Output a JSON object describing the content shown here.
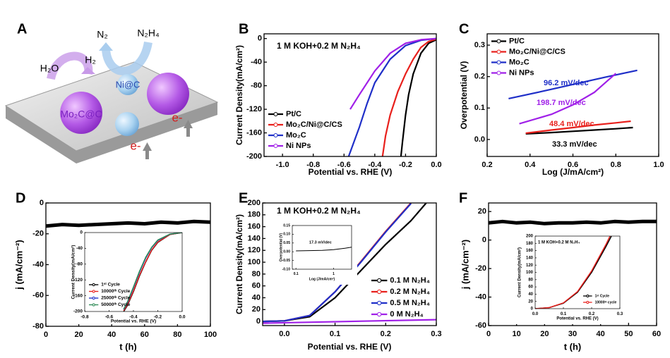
{
  "schematic": {
    "panel_label": "A",
    "labels": {
      "n2": "N₂",
      "n2h4": "N₂H₄",
      "h2o": "H₂O",
      "h2": "H₂",
      "ni_c": "Ni@C",
      "mo2c_c": "Mo₂C@C",
      "electron_1": "e-",
      "electron_2": "e-"
    }
  },
  "chart_data": [
    {
      "type": "line",
      "panel_label": "B",
      "xlabel": "Potential vs. RHE (V)",
      "ylabel": "Current Density(mA/cm²)",
      "annotations": [
        {
          "text": "1 M KOH+0.2 M N₂H₄",
          "color": "#000000"
        }
      ],
      "xlim": [
        -1.12,
        0
      ],
      "xticks": [
        {
          "value": -1.0,
          "label": "-1.0"
        },
        -0.8,
        -0.6,
        -0.4,
        -0.2,
        {
          "value": 0,
          "label": "0.0"
        }
      ],
      "ylim": [
        -200,
        8
      ],
      "yticks": [
        0,
        -40,
        -80,
        -120,
        -160,
        -200
      ],
      "legend": "lower left",
      "series": [
        {
          "name": "Pt/C",
          "color": "#000000",
          "x": [
            0,
            -0.05,
            -0.1,
            -0.15,
            -0.18,
            -0.2,
            -0.22,
            -0.23
          ],
          "values": [
            -2,
            -8,
            -25,
            -60,
            -95,
            -130,
            -175,
            -200
          ]
        },
        {
          "name": "Mo₂C/Ni@C/CS",
          "color": "#e8201c",
          "x": [
            0,
            -0.05,
            -0.1,
            -0.15,
            -0.2,
            -0.25,
            -0.3,
            -0.33,
            -0.35
          ],
          "values": [
            -1,
            -5,
            -15,
            -35,
            -60,
            -90,
            -130,
            -165,
            -200
          ]
        },
        {
          "name": "Mo₂C",
          "color": "#1f2fc8",
          "x": [
            0,
            -0.1,
            -0.2,
            -0.3,
            -0.4,
            -0.45,
            -0.5,
            -0.57
          ],
          "values": [
            0,
            -3,
            -12,
            -35,
            -75,
            -110,
            -150,
            -200
          ]
        },
        {
          "name": "Ni NPs",
          "color": "#a020e8",
          "x": [
            0,
            -0.1,
            -0.2,
            -0.3,
            -0.4,
            -0.5,
            -0.56
          ],
          "values": [
            0,
            -2,
            -8,
            -25,
            -55,
            -95,
            -120
          ]
        }
      ]
    },
    {
      "type": "line",
      "panel_label": "C",
      "xlabel": "Log (J/mA/cm²)",
      "ylabel": "Overpotential (V)",
      "annotations": [
        {
          "text": "96.2 mV/dec",
          "color": "#1f2fc8"
        },
        {
          "text": "198.7 mV/dec",
          "color": "#a020e8"
        },
        {
          "text": "48.4 mV/dec",
          "color": "#e8201c"
        },
        {
          "text": "33.3 mV/dec",
          "color": "#000000"
        }
      ],
      "xlim": [
        0.2,
        1.0
      ],
      "xticks": [
        0.2,
        0.4,
        0.6,
        0.8,
        {
          "value": 1.0,
          "label": "1.0"
        }
      ],
      "ylim": [
        -0.054,
        0.336
      ],
      "yticks": [
        {
          "value": 0,
          "label": "0.0"
        },
        0.1,
        0.2,
        0.3
      ],
      "legend": "upper left",
      "series": [
        {
          "name": "Pt/C",
          "color": "#000000",
          "x": [
            0.38,
            0.5,
            0.6,
            0.7,
            0.8,
            0.88
          ],
          "values": [
            0.018,
            0.022,
            0.026,
            0.03,
            0.034,
            0.038
          ]
        },
        {
          "name": "Mo₂C/Ni@C/CS",
          "color": "#e8201c",
          "x": [
            0.38,
            0.5,
            0.6,
            0.7,
            0.8,
            0.87
          ],
          "values": [
            0.02,
            0.03,
            0.038,
            0.046,
            0.053,
            0.058
          ]
        },
        {
          "name": "Mo₂C",
          "color": "#1f2fc8",
          "x": [
            0.3,
            0.45,
            0.6,
            0.75,
            0.9
          ],
          "values": [
            0.13,
            0.152,
            0.175,
            0.198,
            0.22
          ]
        },
        {
          "name": "Ni NPs",
          "color": "#a020e8",
          "x": [
            0.35,
            0.5,
            0.6,
            0.7,
            0.75,
            0.8
          ],
          "values": [
            0.05,
            0.08,
            0.11,
            0.15,
            0.18,
            0.21
          ]
        }
      ]
    },
    {
      "type": "line",
      "panel_label": "D",
      "xlabel": "t (h)",
      "ylabel": "j (mA/cm⁻²)",
      "xlim": [
        0,
        100
      ],
      "xticks": [
        0,
        20,
        40,
        60,
        80,
        100
      ],
      "ylim": [
        -80,
        0
      ],
      "yticks": [
        0,
        -20,
        -40,
        -60,
        -80
      ],
      "series": [
        {
          "name": null,
          "color": "#000000",
          "x": [
            0,
            10,
            20,
            30,
            40,
            50,
            60,
            70,
            80,
            90,
            100
          ],
          "values": [
            -15,
            -14,
            -14.5,
            -14,
            -13.5,
            -13,
            -13.5,
            -12.5,
            -13,
            -12,
            -12.5
          ]
        }
      ],
      "inset": {
        "type": "line",
        "xlabel": "Potential vs. RHE (V)",
        "ylabel": "Current Density(mA/cm²)",
        "xlim": [
          -0.8,
          0
        ],
        "xticks": [
          -0.8,
          -0.6,
          -0.4,
          -0.2,
          {
            "value": 0,
            "label": "0.0"
          }
        ],
        "ylim": [
          -200,
          0
        ],
        "yticks": [
          0,
          -40,
          -80,
          -120,
          -160,
          -200
        ],
        "legend": "lower left",
        "series": [
          {
            "name": "1ˢᵗ Cycle",
            "color": "#000000",
            "x": [
              0,
              -0.1,
              -0.2,
              -0.25,
              -0.3,
              -0.35,
              -0.4,
              -0.45,
              -0.48
            ],
            "values": [
              0,
              -5,
              -25,
              -45,
              -75,
              -110,
              -150,
              -185,
              -200
            ]
          },
          {
            "name": "10000ᵗʰ Cycle",
            "color": "#e8201c",
            "x": [
              0,
              -0.1,
              -0.2,
              -0.25,
              -0.3,
              -0.35,
              -0.4,
              -0.45,
              -0.48
            ],
            "values": [
              0,
              -5,
              -24,
              -44,
              -74,
              -108,
              -148,
              -183,
              -198
            ]
          },
          {
            "name": "25000ᵗʰ Cycle",
            "color": "#1f2fc8",
            "x": [
              0,
              -0.1,
              -0.2,
              -0.25,
              -0.3,
              -0.35,
              -0.4,
              -0.45,
              -0.48
            ],
            "values": [
              0,
              -4,
              -20,
              -38,
              -65,
              -100,
              -140,
              -178,
              -195
            ]
          },
          {
            "name": "50000ᵗʰ Cycle",
            "color": "#2e8b57",
            "x": [
              0,
              -0.1,
              -0.2,
              -0.25,
              -0.3,
              -0.35,
              -0.4,
              -0.45,
              -0.48
            ],
            "values": [
              0,
              -4,
              -19,
              -37,
              -63,
              -98,
              -138,
              -176,
              -194
            ]
          }
        ]
      }
    },
    {
      "type": "line",
      "panel_label": "E",
      "xlabel": "Potential vs. RHE (V)",
      "ylabel": "Current Density(mA/cm²)",
      "annotations": [
        {
          "text": "1 M KOH+0.2 M N₂H₄",
          "color": "#000000"
        }
      ],
      "xlim": [
        -0.043,
        0.3
      ],
      "xticks": [
        {
          "value": 0,
          "label": "0.0"
        },
        0.1,
        0.2,
        0.3
      ],
      "ylim": [
        -7,
        200
      ],
      "yticks": [
        0,
        20,
        40,
        60,
        80,
        100,
        120,
        140,
        160,
        180,
        200
      ],
      "legend": "lower right",
      "series": [
        {
          "name": "0.1 M N₂H₄",
          "color": "#000000",
          "x": [
            -0.043,
            0,
            0.05,
            0.1,
            0.15,
            0.2,
            0.25,
            0.28
          ],
          "values": [
            0,
            1,
            8,
            40,
            85,
            130,
            170,
            200
          ]
        },
        {
          "name": "0.2 M N₂H₄",
          "color": "#e8201c",
          "x": [
            -0.043,
            0,
            0.05,
            0.1,
            0.15,
            0.2,
            0.25
          ],
          "values": [
            0,
            1,
            10,
            50,
            100,
            152,
            200
          ]
        },
        {
          "name": "0.5 M N₂H₄",
          "color": "#1f2fc8",
          "x": [
            -0.043,
            0,
            0.05,
            0.1,
            0.15,
            0.2,
            0.25
          ],
          "values": [
            0,
            1,
            10,
            50,
            99,
            151,
            199
          ]
        },
        {
          "name": "0 M N₂H₄",
          "color": "#a020e8",
          "x": [
            -0.043,
            0.3
          ],
          "values": [
            -3,
            3
          ]
        }
      ],
      "inset": {
        "type": "line",
        "xlabel": "Log (J/mA/cm²)",
        "ylabel": "Overpotential (V)",
        "xlog": true,
        "annotations": [
          {
            "text": "17.3 mV/dec",
            "color": "#000000"
          }
        ],
        "xlim": [
          0.08,
          3
        ],
        "xticks": [
          0.1,
          1
        ],
        "ylim": [
          -0.1,
          0.15
        ],
        "yticks": [
          {
            "value": -0.1,
            "label": "-0.10"
          },
          -0.05,
          {
            "value": 0,
            "label": "0.00"
          },
          0.05,
          {
            "value": 0.1,
            "label": "0.10"
          },
          0.15
        ],
        "series": [
          {
            "name": null,
            "color": "#000000",
            "x": [
              0.1,
              0.5,
              1,
              2,
              3
            ],
            "values": [
              0.005,
              0.008,
              0.012,
              0.02,
              0.026
            ]
          }
        ]
      }
    },
    {
      "type": "line",
      "panel_label": "F",
      "xlabel": "t (h)",
      "ylabel": "j (mA/cm⁻²)",
      "xlim": [
        0,
        60
      ],
      "xticks": [
        0,
        10,
        20,
        30,
        40,
        50,
        60
      ],
      "ylim": [
        -60,
        26
      ],
      "yticks": [
        20,
        0,
        -20,
        -40,
        -60
      ],
      "series": [
        {
          "name": null,
          "color": "#000000",
          "x": [
            0,
            5,
            10,
            15,
            20,
            25,
            30,
            35,
            40,
            45,
            50,
            55,
            60
          ],
          "values": [
            12,
            13,
            12,
            12.5,
            11.5,
            12,
            12,
            12.5,
            12,
            13,
            12.5,
            13,
            13
          ]
        }
      ],
      "inset": {
        "type": "line",
        "xlabel": "Potential vs. RHE (V)",
        "ylabel": "Current Density(mA/cm²)",
        "annotations": [
          {
            "text": "1 M KOH+0.2 M N₂H₄",
            "color": "#000000"
          }
        ],
        "xlim": [
          0,
          0.3
        ],
        "xticks": [
          {
            "value": 0,
            "label": "0.0"
          },
          0.1,
          0.2,
          0.3
        ],
        "ylim": [
          0,
          200
        ],
        "yticks": [
          0,
          20,
          40,
          60,
          80,
          100,
          120,
          140,
          160,
          180,
          200
        ],
        "legend": "lower right",
        "series": [
          {
            "name": "1ˢᵗ Cycle",
            "color": "#000000",
            "x": [
              0,
              0.05,
              0.1,
              0.15,
              0.2,
              0.25,
              0.27
            ],
            "values": [
              0,
              3,
              15,
              45,
              100,
              170,
              200
            ]
          },
          {
            "name": "10000ᵗʰ cycle",
            "color": "#e8201c",
            "x": [
              0,
              0.05,
              0.1,
              0.15,
              0.2,
              0.25,
              0.265
            ],
            "values": [
              0,
              3,
              16,
              47,
              104,
              176,
              200
            ]
          }
        ]
      }
    }
  ]
}
